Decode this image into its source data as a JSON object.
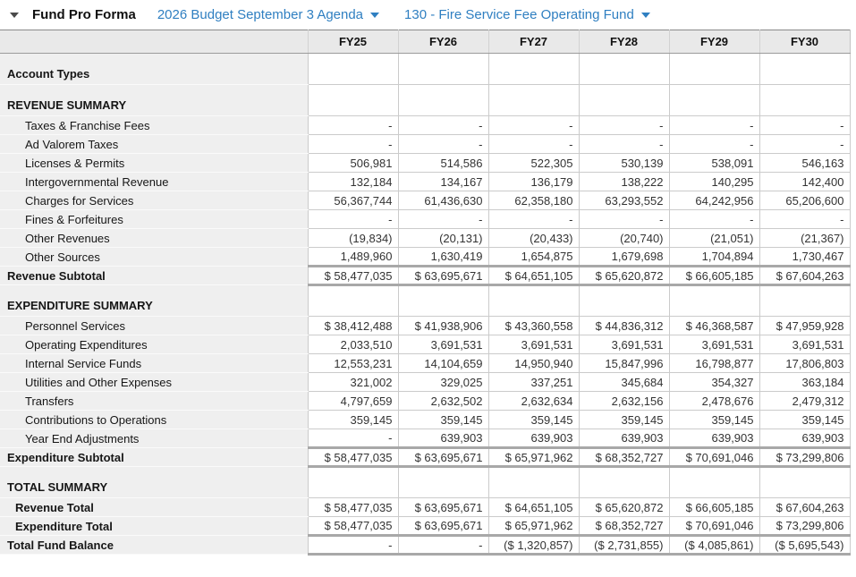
{
  "header": {
    "title": "Fund Pro Forma",
    "budget_dropdown": "2026 Budget September 3 Agenda",
    "fund_dropdown": "130 - Fire Service Fee Operating Fund"
  },
  "colors": {
    "link_blue": "#2f7fc1",
    "header_bg": "#e9e9e9",
    "label_bg": "#efefef",
    "grid_border": "#cbcbcb",
    "subtotal_border": "#a8a8a8"
  },
  "table": {
    "columns": [
      "FY25",
      "FY26",
      "FY27",
      "FY28",
      "FY29",
      "FY30"
    ],
    "rows": [
      {
        "type": "section",
        "label": "Account Types",
        "values": [
          "",
          "",
          "",
          "",
          "",
          ""
        ]
      },
      {
        "type": "section",
        "label": "REVENUE SUMMARY",
        "values": [
          "",
          "",
          "",
          "",
          "",
          ""
        ]
      },
      {
        "type": "data",
        "label": "Taxes & Franchise Fees",
        "values": [
          "-",
          "-",
          "-",
          "-",
          "-",
          "-"
        ]
      },
      {
        "type": "data",
        "label": "Ad Valorem Taxes",
        "values": [
          "-",
          "-",
          "-",
          "-",
          "-",
          "-"
        ]
      },
      {
        "type": "data",
        "label": "Licenses & Permits",
        "values": [
          "506,981",
          "514,586",
          "522,305",
          "530,139",
          "538,091",
          "546,163"
        ]
      },
      {
        "type": "data",
        "label": "Intergovernmental Revenue",
        "values": [
          "132,184",
          "134,167",
          "136,179",
          "138,222",
          "140,295",
          "142,400"
        ]
      },
      {
        "type": "data",
        "label": "Charges for Services",
        "values": [
          "56,367,744",
          "61,436,630",
          "62,358,180",
          "63,293,552",
          "64,242,956",
          "65,206,600"
        ]
      },
      {
        "type": "data",
        "label": "Fines & Forfeitures",
        "values": [
          "-",
          "-",
          "-",
          "-",
          "-",
          "-"
        ]
      },
      {
        "type": "data",
        "label": "Other Revenues",
        "values": [
          "(19,834)",
          "(20,131)",
          "(20,433)",
          "(20,740)",
          "(21,051)",
          "(21,367)"
        ]
      },
      {
        "type": "data",
        "label": "Other Sources",
        "values": [
          "1,489,960",
          "1,630,419",
          "1,654,875",
          "1,679,698",
          "1,704,894",
          "1,730,467"
        ]
      },
      {
        "type": "subtotal",
        "label": "Revenue Subtotal",
        "values": [
          "$ 58,477,035",
          "$ 63,695,671",
          "$ 64,651,105",
          "$ 65,620,872",
          "$ 66,605,185",
          "$ 67,604,263"
        ]
      },
      {
        "type": "section",
        "label": "EXPENDITURE SUMMARY",
        "values": [
          "",
          "",
          "",
          "",
          "",
          ""
        ]
      },
      {
        "type": "data",
        "label": "Personnel Services",
        "values": [
          "$ 38,412,488",
          "$ 41,938,906",
          "$ 43,360,558",
          "$ 44,836,312",
          "$ 46,368,587",
          "$ 47,959,928"
        ]
      },
      {
        "type": "data",
        "label": "Operating Expenditures",
        "values": [
          "2,033,510",
          "3,691,531",
          "3,691,531",
          "3,691,531",
          "3,691,531",
          "3,691,531"
        ]
      },
      {
        "type": "data",
        "label": "Internal Service Funds",
        "values": [
          "12,553,231",
          "14,104,659",
          "14,950,940",
          "15,847,996",
          "16,798,877",
          "17,806,803"
        ]
      },
      {
        "type": "data",
        "label": "Utilities and Other Expenses",
        "values": [
          "321,002",
          "329,025",
          "337,251",
          "345,684",
          "354,327",
          "363,184"
        ]
      },
      {
        "type": "data",
        "label": "Transfers",
        "values": [
          "4,797,659",
          "2,632,502",
          "2,632,634",
          "2,632,156",
          "2,478,676",
          "2,479,312"
        ]
      },
      {
        "type": "data",
        "label": "Contributions to Operations",
        "values": [
          "359,145",
          "359,145",
          "359,145",
          "359,145",
          "359,145",
          "359,145"
        ]
      },
      {
        "type": "data",
        "label": "Year End Adjustments",
        "values": [
          "-",
          "639,903",
          "639,903",
          "639,903",
          "639,903",
          "639,903"
        ]
      },
      {
        "type": "subtotal",
        "label": "Expenditure Subtotal",
        "values": [
          "$ 58,477,035",
          "$ 63,695,671",
          "$ 65,971,962",
          "$ 68,352,727",
          "$ 70,691,046",
          "$ 73,299,806"
        ]
      },
      {
        "type": "section",
        "label": "TOTAL SUMMARY",
        "values": [
          "",
          "",
          "",
          "",
          "",
          ""
        ]
      },
      {
        "type": "total",
        "label": "Revenue Total",
        "values": [
          "$ 58,477,035",
          "$ 63,695,671",
          "$ 64,651,105",
          "$ 65,620,872",
          "$ 66,605,185",
          "$ 67,604,263"
        ]
      },
      {
        "type": "total",
        "label": "Expenditure Total",
        "values": [
          "$ 58,477,035",
          "$ 63,695,671",
          "$ 65,971,962",
          "$ 68,352,727",
          "$ 70,691,046",
          "$ 73,299,806"
        ]
      },
      {
        "type": "subtotal",
        "label": "Total Fund Balance",
        "values": [
          "-",
          "-",
          "($ 1,320,857)",
          "($ 2,731,855)",
          "($ 4,085,861)",
          "($ 5,695,543)"
        ]
      }
    ]
  }
}
